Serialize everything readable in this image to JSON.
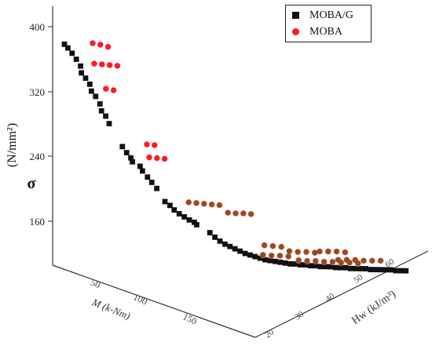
{
  "chart_data": {
    "type": "scatter",
    "zlabel": "σ",
    "zunit": "(N/mm²)",
    "xlabel": "M (k-Nm)",
    "ylabel": "Hw (kJ/m³)",
    "zticks": [
      "400",
      "320",
      "240",
      "160"
    ],
    "xticks": [
      "50",
      "100",
      "150"
    ],
    "yticks": [
      "20",
      "30",
      "40",
      "50",
      "60"
    ],
    "series": [
      {
        "name": "MOBA/G",
        "marker": "square",
        "color": "#111111",
        "points": [
          [
            15,
            20,
            405
          ],
          [
            16,
            20.5,
            400
          ],
          [
            18,
            21,
            393
          ],
          [
            20,
            21.5,
            385
          ],
          [
            22,
            22,
            376
          ],
          [
            23,
            22,
            367
          ],
          [
            25,
            22.5,
            360
          ],
          [
            27,
            23,
            352
          ],
          [
            29,
            23,
            343
          ],
          [
            31,
            23.5,
            336
          ],
          [
            33,
            24,
            326
          ],
          [
            35,
            24,
            317
          ],
          [
            37,
            24.5,
            310
          ],
          [
            38,
            25,
            300
          ],
          [
            48,
            26,
            270
          ],
          [
            50,
            26.5,
            262
          ],
          [
            52,
            27,
            255
          ],
          [
            54,
            27,
            250
          ],
          [
            57,
            28,
            244
          ],
          [
            60,
            28,
            238
          ],
          [
            63,
            28.5,
            230
          ],
          [
            65,
            29,
            223
          ],
          [
            68,
            29.5,
            215
          ],
          [
            75,
            30,
            198
          ],
          [
            78,
            30.5,
            193
          ],
          [
            80,
            31,
            187
          ],
          [
            83,
            31.5,
            182
          ],
          [
            86,
            32,
            178
          ],
          [
            89,
            32.5,
            174
          ],
          [
            92,
            33,
            171
          ],
          [
            95,
            33,
            168
          ],
          [
            105,
            34,
            158
          ],
          [
            108,
            34.5,
            152
          ],
          [
            111,
            35,
            147
          ],
          [
            114,
            35.5,
            143
          ],
          [
            117,
            36,
            140
          ],
          [
            120,
            36.5,
            137
          ],
          [
            123,
            37,
            134
          ],
          [
            126,
            37.5,
            131
          ],
          [
            129,
            38,
            129
          ],
          [
            132,
            38.5,
            127
          ],
          [
            135,
            39,
            125
          ],
          [
            138,
            39.5,
            123
          ],
          [
            141,
            40,
            122
          ],
          [
            144,
            40.5,
            121
          ],
          [
            147,
            41,
            120
          ],
          [
            150,
            41.5,
            119
          ],
          [
            153,
            42,
            118
          ],
          [
            156,
            42.5,
            118
          ],
          [
            159,
            43,
            117
          ],
          [
            162,
            43.5,
            117
          ],
          [
            165,
            44,
            116
          ],
          [
            168,
            44.5,
            116
          ],
          [
            171,
            45,
            115
          ],
          [
            174,
            45.5,
            115
          ],
          [
            177,
            46,
            115
          ],
          [
            180,
            46.5,
            114
          ],
          [
            183,
            47,
            114
          ],
          [
            186,
            47.5,
            114
          ],
          [
            189,
            48,
            113
          ],
          [
            192,
            48.5,
            113
          ],
          [
            195,
            49,
            113
          ],
          [
            198,
            49.5,
            113
          ],
          [
            201,
            50,
            112
          ],
          [
            204,
            50.5,
            112
          ],
          [
            207,
            51,
            112
          ],
          [
            210,
            51.5,
            112
          ],
          [
            213,
            52,
            112
          ],
          [
            216,
            52.5,
            111
          ],
          [
            219,
            53,
            111
          ],
          [
            222,
            53.5,
            111
          ]
        ]
      },
      {
        "name": "MOBA",
        "marker": "circle",
        "color": "#ff1a1a",
        "points": [
          [
            17,
            25,
            405
          ],
          [
            20,
            26,
            403
          ],
          [
            23,
            27,
            400
          ],
          [
            19,
            25,
            378
          ],
          [
            22,
            26,
            377
          ],
          [
            25,
            27,
            376
          ],
          [
            28,
            28,
            375
          ],
          [
            27,
            26,
            345
          ],
          [
            30,
            27,
            343
          ],
          [
            52,
            30,
            272
          ],
          [
            55,
            31,
            271
          ],
          [
            55,
            30,
            255
          ],
          [
            58,
            31,
            254
          ],
          [
            61,
            32,
            253
          ],
          [
            78,
            34,
            196
          ],
          [
            81,
            35,
            195
          ],
          [
            84,
            36,
            194
          ],
          [
            87,
            37,
            193
          ],
          [
            90,
            38,
            192
          ],
          [
            94,
            39,
            182
          ],
          [
            97,
            40,
            181
          ],
          [
            100,
            41,
            181
          ],
          [
            103,
            42,
            180
          ],
          [
            120,
            42,
            140
          ],
          [
            124,
            43,
            139
          ],
          [
            128,
            44,
            138
          ],
          [
            125,
            41,
            128
          ],
          [
            129,
            42,
            127
          ],
          [
            133,
            43,
            127
          ],
          [
            137,
            44,
            126
          ],
          [
            145,
            43,
            134
          ],
          [
            149,
            44,
            133
          ],
          [
            153,
            45,
            133
          ],
          [
            157,
            46,
            132
          ],
          [
            150,
            44,
            122
          ],
          [
            154,
            45,
            121
          ],
          [
            158,
            46,
            121
          ],
          [
            162,
            47,
            120
          ],
          [
            166,
            48,
            120
          ],
          [
            170,
            49,
            119
          ],
          [
            174,
            50,
            119
          ],
          [
            178,
            51,
            118
          ],
          [
            170,
            45,
            135
          ],
          [
            174,
            46,
            135
          ],
          [
            178,
            47,
            135
          ],
          [
            182,
            48,
            134
          ],
          [
            180,
            47,
            124
          ],
          [
            184,
            48,
            124
          ],
          [
            188,
            49,
            124
          ],
          [
            192,
            50,
            123
          ],
          [
            196,
            51,
            123
          ],
          [
            200,
            52,
            123
          ]
        ]
      }
    ]
  }
}
